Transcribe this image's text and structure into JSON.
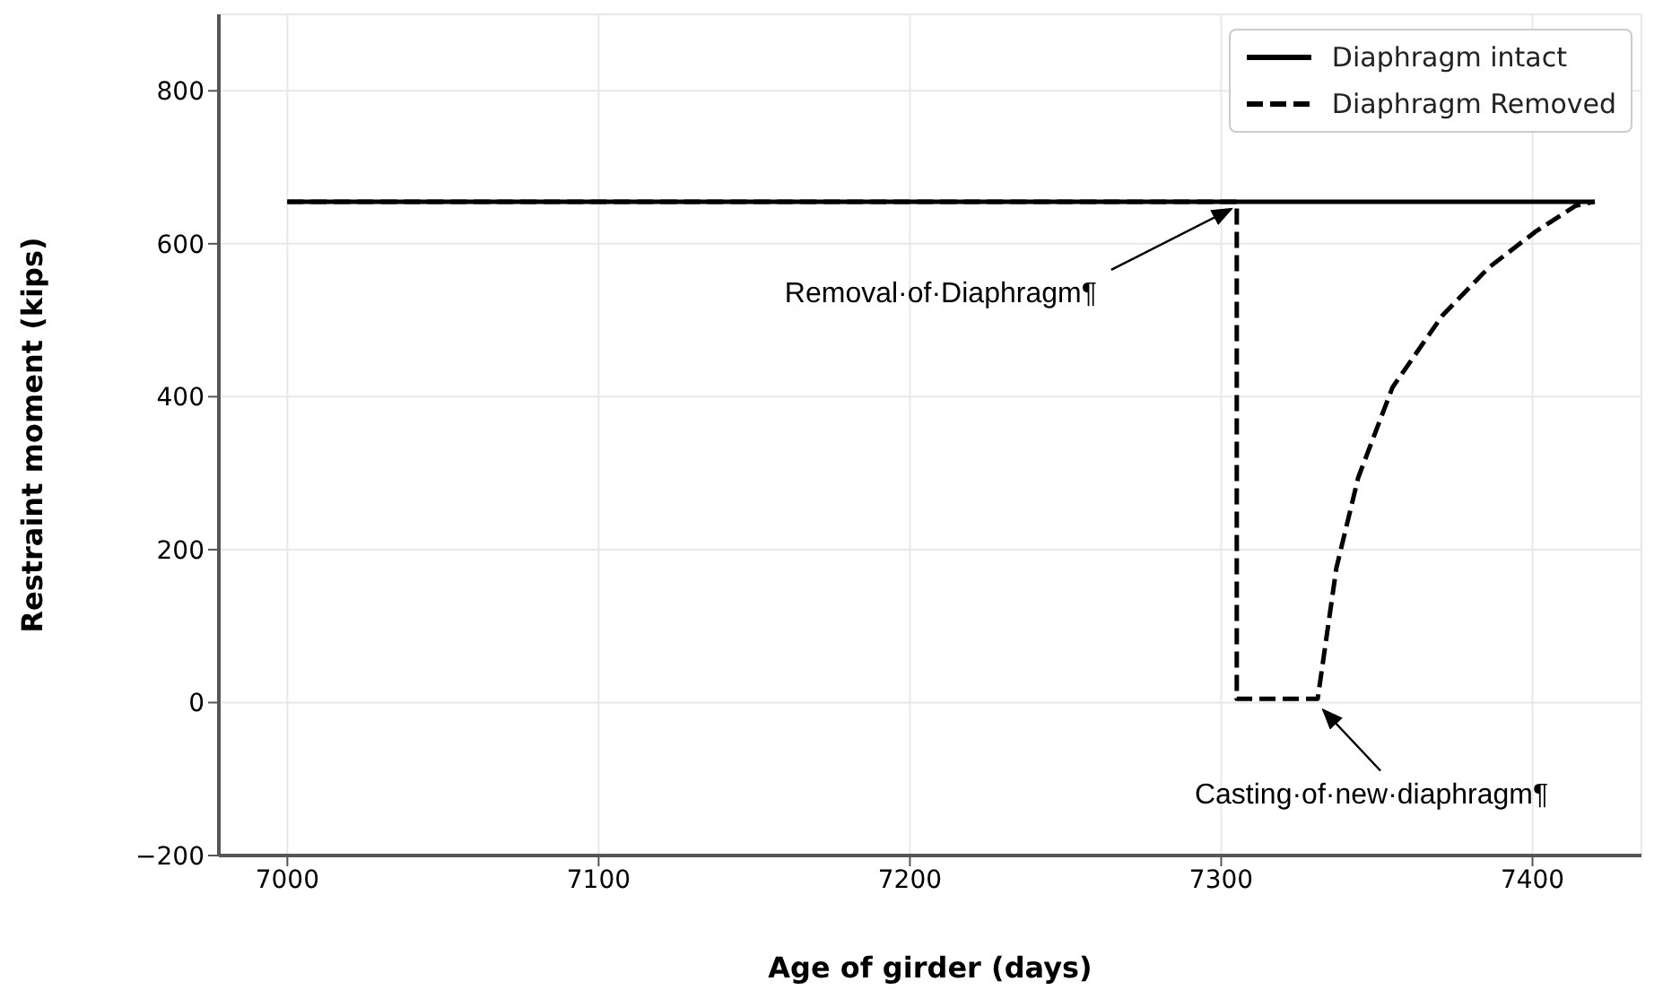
{
  "chart_data": {
    "type": "line",
    "xlabel": "Age of girder (days)",
    "ylabel": "Restraint moment (kips)",
    "xlim": [
      6978,
      7435
    ],
    "xticks": [
      7000,
      7100,
      7200,
      7300,
      7400
    ],
    "ylim": [
      -200,
      900
    ],
    "yticks": [
      -200,
      0,
      200,
      400,
      600,
      800
    ],
    "grid": true,
    "legend": "top right",
    "series": [
      {
        "name": "Diaphragm intact",
        "color": "#000000",
        "line_style": "solid",
        "x": [
          7000,
          7420
        ],
        "values": [
          655,
          655
        ]
      },
      {
        "name": "Diaphragm Removed",
        "color": "#000000",
        "line_style": "dashed",
        "x": [
          7000,
          7305,
          7305,
          7331,
          7337,
          7344,
          7355,
          7371,
          7386,
          7401,
          7414,
          7420
        ],
        "values": [
          655,
          655,
          5,
          5,
          176,
          294,
          412,
          506,
          569,
          616,
          650,
          655
        ]
      }
    ],
    "annotations": [
      {
        "text": "Removal·of·Diaphragm¶",
        "x": 7305,
        "y": 655
      },
      {
        "text": "Casting·of·new·diaphragm¶",
        "x": 7331,
        "y": 0
      }
    ]
  }
}
